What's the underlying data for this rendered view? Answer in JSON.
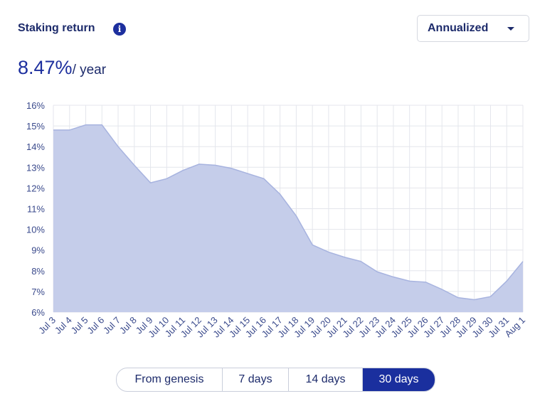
{
  "header": {
    "title": "Staking return",
    "dropdown": "Annualized",
    "rate": "8.47%",
    "rate_unit": "/ year"
  },
  "chart_data": {
    "type": "area",
    "categories": [
      "Jul 3",
      "Jul 4",
      "Jul 5",
      "Jul 6",
      "Jul 7",
      "Jul 8",
      "Jul 9",
      "Jul 10",
      "Jul 11",
      "Jul 12",
      "Jul 13",
      "Jul 14",
      "Jul 15",
      "Jul 16",
      "Jul 17",
      "Jul 18",
      "Jul 19",
      "Jul 20",
      "Jul 21",
      "Jul 22",
      "Jul 23",
      "Jul 24",
      "Jul 25",
      "Jul 26",
      "Jul 27",
      "Jul 28",
      "Jul 29",
      "Jul 30",
      "Jul 31",
      "Aug 1"
    ],
    "values": [
      14.8,
      14.8,
      15.05,
      15.05,
      14.0,
      13.1,
      12.25,
      12.45,
      12.85,
      13.15,
      13.1,
      12.95,
      12.7,
      12.45,
      11.7,
      10.65,
      9.25,
      8.9,
      8.65,
      8.45,
      7.95,
      7.7,
      7.5,
      7.45,
      7.1,
      6.7,
      6.6,
      6.75,
      7.5,
      8.45
    ],
    "color": "#c5cdea",
    "line_color": "#a7b3df",
    "ylim": [
      6,
      16
    ],
    "yticks": [
      {
        "value": 6,
        "label": "6%"
      },
      {
        "value": 7,
        "label": "7%"
      },
      {
        "value": 8,
        "label": "8%"
      },
      {
        "value": 9,
        "label": "9%"
      },
      {
        "value": 10,
        "label": "10%"
      },
      {
        "value": 11,
        "label": "11%"
      },
      {
        "value": 12,
        "label": "12%"
      },
      {
        "value": 13,
        "label": "13%"
      },
      {
        "value": 14,
        "label": "14%"
      },
      {
        "value": 15,
        "label": "15%"
      },
      {
        "value": 16,
        "label": "16%"
      }
    ],
    "grid": true
  },
  "range_buttons": {
    "options": [
      "From genesis",
      "7 days",
      "14 days",
      "30 days"
    ],
    "selected": "30 days"
  }
}
